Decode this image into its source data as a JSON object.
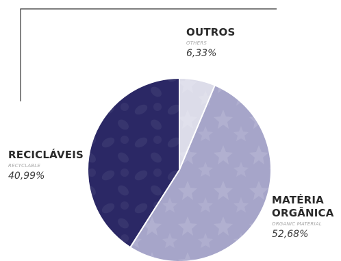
{
  "chart_data": {
    "type": "pie",
    "title": "",
    "slices": [
      {
        "label": "OUTROS",
        "sublabel": "OTHERS",
        "value": 6.33,
        "value_label": "6,33%",
        "color": "#dcdce9"
      },
      {
        "label": "MATÉRIA ORGÂNICA",
        "sublabel": "ORGANIC MATERIAL",
        "value": 52.68,
        "value_label": "52,68%",
        "color": "#a6a5c9"
      },
      {
        "label": "RECICLÁVEIS",
        "sublabel": "RECYCLABLE",
        "value": 40.99,
        "value_label": "40,99%",
        "color": "#2b2865"
      }
    ]
  },
  "labels": {
    "outros": {
      "line1": "OUTROS",
      "sub": "OTHERS",
      "pct": "6,33%"
    },
    "reciclaveis": {
      "line1": "RECICLÁVEIS",
      "sub": "RECYCLABLE",
      "pct": "40,99%"
    },
    "materia": {
      "line1": "MATÉRIA",
      "line2": "ORGÂNICA",
      "sub": "ORGANIC MATERIAL",
      "pct": "52,68%"
    }
  },
  "colors": {
    "frame_line": "#333333",
    "slice_border": "#ffffff"
  }
}
